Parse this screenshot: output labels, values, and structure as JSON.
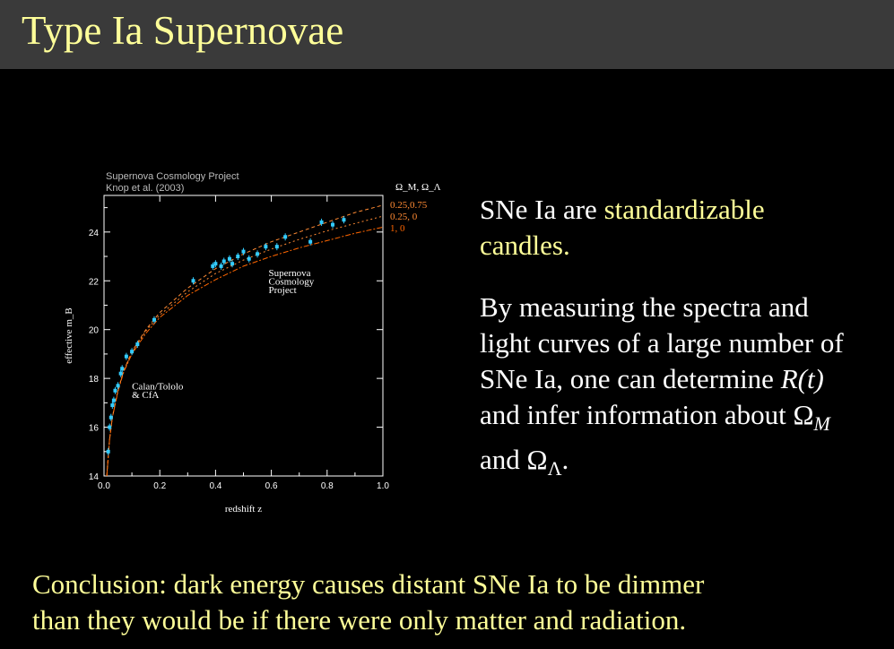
{
  "slide": {
    "title": "Type Ia Supernovae",
    "text1_a": "SNe Ia are ",
    "text1_hl": "standardizable candles.",
    "text2_a": "By measuring the spectra and light curves of a large number of SNe Ia, one can determine ",
    "text2_rt": "R(t)",
    "text2_b": " and infer information about Ω",
    "text2_sub_m": "M",
    "text2_c": " and Ω",
    "text2_sub_l": "Λ",
    "text2_d": ".",
    "conclusion_line1": "Conclusion: dark energy causes distant SNe Ia to be dimmer",
    "conclusion_line2": "than they would be if there were only matter and radiation."
  },
  "chart_data": {
    "type": "scatter",
    "header_line1": "Supernova Cosmology Project",
    "header_line2": "Knop et al. (2003)",
    "xlabel": "redshift z",
    "ylabel": "effective m_B",
    "xlim": [
      0.0,
      1.0
    ],
    "ylim": [
      14,
      25.5
    ],
    "xticks": [
      0.0,
      0.2,
      0.4,
      0.6,
      0.8,
      1.0
    ],
    "xtick_labels": [
      "0.0",
      "0.2",
      "0.4",
      "0.6",
      "0.8",
      "1.0"
    ],
    "yticks": [
      14,
      16,
      18,
      20,
      22,
      24
    ],
    "ytick_labels": [
      "14",
      "16",
      "18",
      "20",
      "22",
      "24"
    ],
    "legend_title": "Ω_M, Ω_Λ",
    "series": [
      {
        "name": "0.25,0.75",
        "color": "#ff8a33",
        "dash": "4,3",
        "x": [
          0.01,
          0.02,
          0.03,
          0.05,
          0.07,
          0.1,
          0.15,
          0.2,
          0.3,
          0.4,
          0.5,
          0.6,
          0.7,
          0.8,
          0.9,
          1.0
        ],
        "y": [
          14.0,
          15.5,
          16.4,
          17.5,
          18.3,
          19.1,
          20.0,
          20.7,
          21.7,
          22.5,
          23.1,
          23.6,
          24.0,
          24.4,
          24.8,
          25.1
        ]
      },
      {
        "name": "0.25, 0",
        "color": "#ff8a33",
        "dash": "2,3",
        "x": [
          0.01,
          0.02,
          0.03,
          0.05,
          0.07,
          0.1,
          0.15,
          0.2,
          0.3,
          0.4,
          0.5,
          0.6,
          0.7,
          0.8,
          0.9,
          1.0
        ],
        "y": [
          14.0,
          15.5,
          16.4,
          17.5,
          18.3,
          19.05,
          19.95,
          20.6,
          21.55,
          22.3,
          22.85,
          23.3,
          23.7,
          24.05,
          24.35,
          24.65
        ]
      },
      {
        "name": "1,    0",
        "color": "#ff6600",
        "dash": "6,2,2,2",
        "x": [
          0.01,
          0.02,
          0.03,
          0.05,
          0.07,
          0.1,
          0.15,
          0.2,
          0.3,
          0.4,
          0.5,
          0.6,
          0.7,
          0.8,
          0.9,
          1.0
        ],
        "y": [
          14.0,
          15.5,
          16.4,
          17.45,
          18.25,
          19.0,
          19.85,
          20.5,
          21.4,
          22.05,
          22.6,
          23.0,
          23.35,
          23.65,
          23.95,
          24.2
        ]
      }
    ],
    "points": [
      {
        "x": 0.015,
        "y": 15.0
      },
      {
        "x": 0.02,
        "y": 16.0
      },
      {
        "x": 0.025,
        "y": 16.4
      },
      {
        "x": 0.03,
        "y": 16.9
      },
      {
        "x": 0.035,
        "y": 17.1
      },
      {
        "x": 0.04,
        "y": 17.5
      },
      {
        "x": 0.05,
        "y": 17.7
      },
      {
        "x": 0.06,
        "y": 18.2
      },
      {
        "x": 0.065,
        "y": 18.4
      },
      {
        "x": 0.08,
        "y": 18.9
      },
      {
        "x": 0.1,
        "y": 19.1
      },
      {
        "x": 0.12,
        "y": 19.4
      },
      {
        "x": 0.18,
        "y": 20.4
      },
      {
        "x": 0.32,
        "y": 22.0
      },
      {
        "x": 0.39,
        "y": 22.6
      },
      {
        "x": 0.4,
        "y": 22.7
      },
      {
        "x": 0.42,
        "y": 22.6
      },
      {
        "x": 0.43,
        "y": 22.8
      },
      {
        "x": 0.45,
        "y": 22.9
      },
      {
        "x": 0.46,
        "y": 22.7
      },
      {
        "x": 0.48,
        "y": 23.0
      },
      {
        "x": 0.5,
        "y": 23.2
      },
      {
        "x": 0.52,
        "y": 22.9
      },
      {
        "x": 0.55,
        "y": 23.1
      },
      {
        "x": 0.58,
        "y": 23.4
      },
      {
        "x": 0.62,
        "y": 23.4
      },
      {
        "x": 0.65,
        "y": 23.8
      },
      {
        "x": 0.74,
        "y": 23.6
      },
      {
        "x": 0.78,
        "y": 24.4
      },
      {
        "x": 0.82,
        "y": 24.3
      },
      {
        "x": 0.86,
        "y": 24.5
      }
    ],
    "point_color": "#33ccff",
    "annotations": [
      {
        "text": "Supernova",
        "x": 0.59,
        "y": 22.2
      },
      {
        "text": "Cosmology",
        "x": 0.59,
        "y": 21.85
      },
      {
        "text": "Project",
        "x": 0.59,
        "y": 21.5
      },
      {
        "text": "Calan/Tololo",
        "x": 0.1,
        "y": 17.55
      },
      {
        "text": "& CfA",
        "x": 0.1,
        "y": 17.2
      }
    ]
  }
}
